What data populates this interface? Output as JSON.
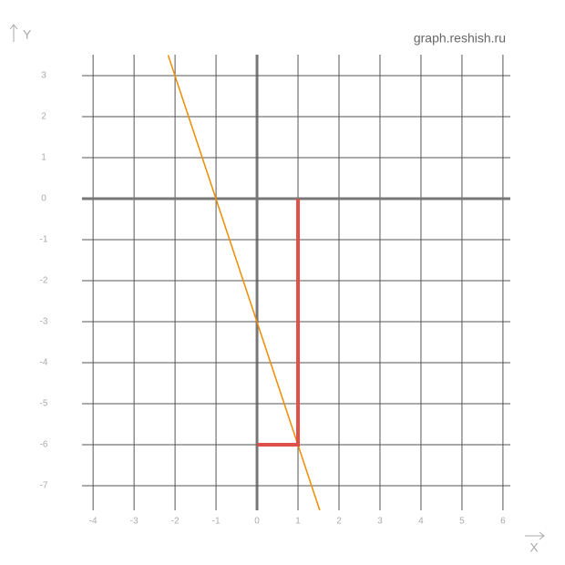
{
  "chart_data": {
    "type": "line",
    "watermark": "graph.reshish.ru",
    "x_label": "X",
    "y_label": "Y",
    "xlim": [
      -4.27,
      6.18
    ],
    "ylim": [
      -7.6,
      3.51
    ],
    "xticks": [
      -4,
      -3,
      -2,
      -1,
      0,
      1,
      2,
      3,
      4,
      5,
      6
    ],
    "yticks": [
      -7,
      -6,
      -5,
      -4,
      -3,
      -2,
      -1,
      0,
      1,
      2,
      3
    ],
    "grid": true,
    "series": [
      {
        "color": "#f08c00",
        "x": [
          -2.17,
          1.53
        ],
        "values": [
          3.5,
          -7.6
        ]
      },
      {
        "color": "#e0504a",
        "x": [
          0,
          1,
          1
        ],
        "values": [
          -6,
          -6,
          0
        ]
      }
    ]
  }
}
